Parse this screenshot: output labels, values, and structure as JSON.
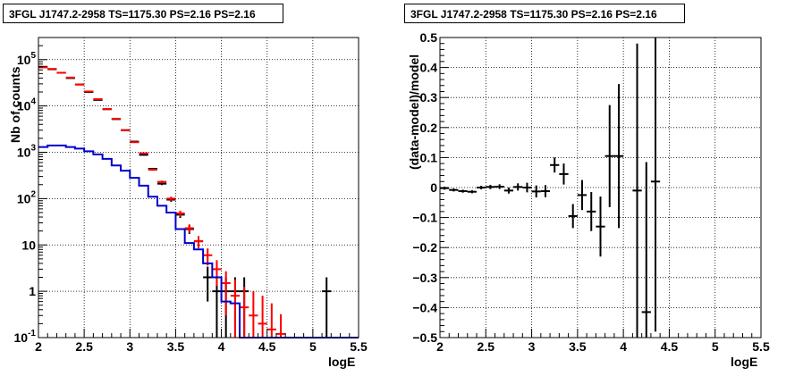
{
  "chart_data": [
    {
      "type": "line",
      "title": "3FGL J1747.2-2958 TS=1175.30 PS=2.16 PS=2.16",
      "xlabel": "logE",
      "ylabel": "Nb of counts",
      "xlim": [
        2,
        5.5
      ],
      "ylim": [
        0.1,
        300000
      ],
      "yscale": "log",
      "grid": true,
      "x_ticks": [
        "2",
        "2.5",
        "3",
        "3.5",
        "4",
        "4.5",
        "5",
        "5.5"
      ],
      "y_ticks": [
        {
          "value": 0.1,
          "label": "10⁻¹",
          "base": "10",
          "exp": "-1"
        },
        {
          "value": 1,
          "label": "1",
          "base": "1",
          "exp": ""
        },
        {
          "value": 10,
          "label": "10",
          "base": "10",
          "exp": ""
        },
        {
          "value": 100,
          "label": "10²",
          "base": "10",
          "exp": "2"
        },
        {
          "value": 1000,
          "label": "10³",
          "base": "10",
          "exp": "3"
        },
        {
          "value": 10000,
          "label": "10⁴",
          "base": "10",
          "exp": "4"
        },
        {
          "value": 100000,
          "label": "10⁵",
          "base": "10",
          "exp": "5"
        }
      ],
      "bin_width": 0.1,
      "series": [
        {
          "style": "errorbar",
          "color": "#000000",
          "x": [
            2.05,
            2.15,
            2.25,
            2.35,
            2.45,
            2.55,
            2.65,
            2.75,
            2.85,
            2.95,
            3.05,
            3.15,
            3.25,
            3.35,
            3.45,
            3.55,
            3.65,
            3.75,
            3.85,
            3.95,
            4.05,
            4.15,
            4.25,
            5.15
          ],
          "y": [
            70000,
            62000,
            52000,
            40000,
            29000,
            20000,
            13500,
            8500,
            5200,
            3000,
            1700,
            880,
            440,
            210,
            95,
            45,
            22,
            12,
            2,
            1,
            1,
            1,
            1,
            1
          ],
          "yerr_low": [
            265,
            249,
            228,
            200,
            170,
            141,
            116,
            92,
            72,
            55,
            41,
            30,
            21,
            14.5,
            9.7,
            6.7,
            4.7,
            3.5,
            1.4,
            0.99,
            0.99,
            0.99,
            0.99,
            0.99
          ],
          "yerr_high": [
            265,
            249,
            228,
            200,
            170,
            141,
            116,
            92,
            72,
            55,
            41,
            30,
            21,
            14.5,
            9.7,
            6.7,
            4.7,
            3.5,
            1.4,
            1,
            1,
            1,
            1,
            1
          ]
        },
        {
          "style": "errorbar",
          "color": "#ff0000",
          "x": [
            2.05,
            2.15,
            2.25,
            2.35,
            2.45,
            2.55,
            2.65,
            2.75,
            2.85,
            2.95,
            3.05,
            3.15,
            3.25,
            3.35,
            3.45,
            3.55,
            3.65,
            3.75,
            3.85,
            3.95,
            4.05,
            4.15,
            4.25,
            4.35,
            4.45,
            4.55,
            4.65
          ],
          "y": [
            68000,
            63000,
            52000,
            41000,
            29000,
            20500,
            14000,
            8600,
            5300,
            3000,
            1650,
            950,
            420,
            230,
            100,
            48,
            23,
            12,
            6,
            3,
            1.5,
            0.8,
            0.45,
            0.3,
            0.2,
            0.15,
            0.12
          ],
          "yerr_low": [
            260,
            250,
            228,
            202,
            170,
            143,
            118,
            93,
            73,
            55,
            41,
            31,
            20,
            15,
            10,
            7,
            4.8,
            3.5,
            2.4,
            1.7,
            1.2,
            0.7,
            0.35,
            0.2,
            0.1,
            0.05,
            0.02
          ],
          "yerr_high": [
            260,
            250,
            228,
            202,
            170,
            143,
            118,
            93,
            73,
            55,
            41,
            31,
            20,
            15,
            10,
            7,
            4.8,
            3.5,
            2.4,
            1.7,
            1.2,
            1.0,
            0.8,
            0.7,
            0.6,
            0.4,
            0.2
          ]
        },
        {
          "style": "step",
          "color": "#0000cc",
          "x": [
            2.05,
            2.15,
            2.25,
            2.35,
            2.45,
            2.55,
            2.65,
            2.75,
            2.85,
            2.95,
            3.05,
            3.15,
            3.25,
            3.35,
            3.45,
            3.55,
            3.65,
            3.75,
            3.85,
            3.95,
            4.05,
            4.15,
            4.25,
            4.35,
            4.45,
            4.55,
            4.65,
            4.75,
            4.85,
            4.95,
            5.05,
            5.15,
            5.25,
            5.35,
            5.45
          ],
          "y": [
            1300,
            1400,
            1400,
            1300,
            1200,
            1050,
            900,
            720,
            520,
            400,
            280,
            190,
            110,
            70,
            50,
            22,
            11,
            8,
            4,
            2,
            0.6,
            0.55,
            0.1,
            0.1,
            0.1,
            0.1,
            0.1,
            0.1,
            0.1,
            0.1,
            0.1,
            0.1,
            0.1,
            0.1,
            0.1
          ]
        }
      ]
    },
    {
      "type": "scatter",
      "title": "3FGL J1747.2-2958 TS=1175.30 PS=2.16 PS=2.16",
      "xlabel": "logE",
      "ylabel": "(data-model)/model",
      "xlim": [
        2,
        5.5
      ],
      "ylim": [
        -0.5,
        0.5
      ],
      "grid": true,
      "x_ticks": [
        "2",
        "2.5",
        "3",
        "3.5",
        "4",
        "4.5",
        "5",
        "5.5"
      ],
      "y_ticks": [
        "−0.5",
        "−0.4",
        "−0.3",
        "−0.2",
        "−0.1",
        "0",
        "0.1",
        "0.2",
        "0.3",
        "0.4",
        "0.5"
      ],
      "bin_width": 0.1,
      "series": [
        {
          "style": "errorbar",
          "color": "#000000",
          "x": [
            2.05,
            2.15,
            2.25,
            2.35,
            2.45,
            2.55,
            2.65,
            2.75,
            2.85,
            2.95,
            3.05,
            3.15,
            3.25,
            3.35,
            3.45,
            3.55,
            3.65,
            3.75,
            3.85,
            3.95,
            4.15,
            4.25,
            4.35
          ],
          "y": [
            -0.002,
            -0.008,
            -0.012,
            -0.014,
            0.0,
            0.002,
            0.003,
            -0.01,
            0.002,
            0.0,
            -0.013,
            -0.012,
            0.075,
            0.045,
            -0.095,
            -0.025,
            -0.08,
            -0.13,
            0.105,
            0.105,
            -0.01,
            -0.415,
            0.02
          ],
          "yerr": [
            0.005,
            0.005,
            0.005,
            0.005,
            0.006,
            0.007,
            0.008,
            0.01,
            0.012,
            0.016,
            0.02,
            0.02,
            0.025,
            0.035,
            0.04,
            0.05,
            0.065,
            0.1,
            0.17,
            0.24,
            0.49,
            0.5,
            0.5
          ]
        }
      ]
    }
  ]
}
